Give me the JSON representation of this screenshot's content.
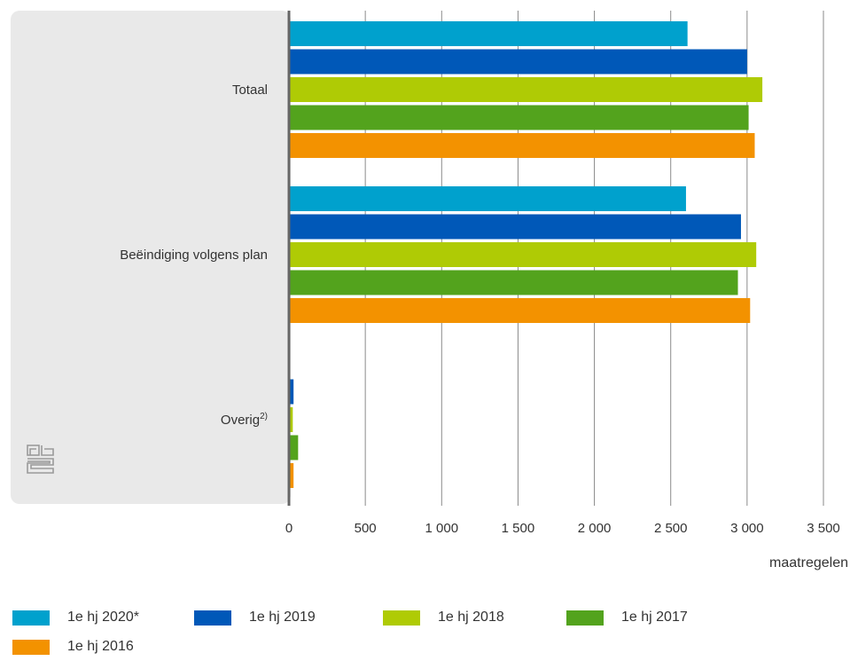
{
  "chart_data": {
    "type": "bar",
    "orientation": "horizontal",
    "categories": [
      "Totaal",
      "Beëindiging volgens plan",
      "Overig"
    ],
    "category_superscripts": [
      "",
      "",
      "2)"
    ],
    "series": [
      {
        "name": "1e hj 2020*",
        "color": "#00a1cd",
        "values": [
          2610,
          2600,
          0
        ]
      },
      {
        "name": "1e hj 2019",
        "color": "#0058b8",
        "values": [
          3000,
          2960,
          30
        ]
      },
      {
        "name": "1e hj 2018",
        "color": "#afcb05",
        "values": [
          3100,
          3060,
          25
        ]
      },
      {
        "name": "1e hj 2017",
        "color": "#53a31d",
        "values": [
          3010,
          2940,
          60
        ]
      },
      {
        "name": "1e hj 2016",
        "color": "#f39200",
        "values": [
          3050,
          3020,
          30
        ]
      }
    ],
    "xlim": [
      0,
      3500
    ],
    "xticks": [
      0,
      500,
      1000,
      1500,
      2000,
      2500,
      3000,
      3500
    ],
    "xtick_labels": [
      "0",
      "500",
      "1 000",
      "1 500",
      "2 000",
      "2 500",
      "3 000",
      "3 500"
    ],
    "xlabel": "maatregelen",
    "grid": true,
    "legend_position": "bottom"
  }
}
